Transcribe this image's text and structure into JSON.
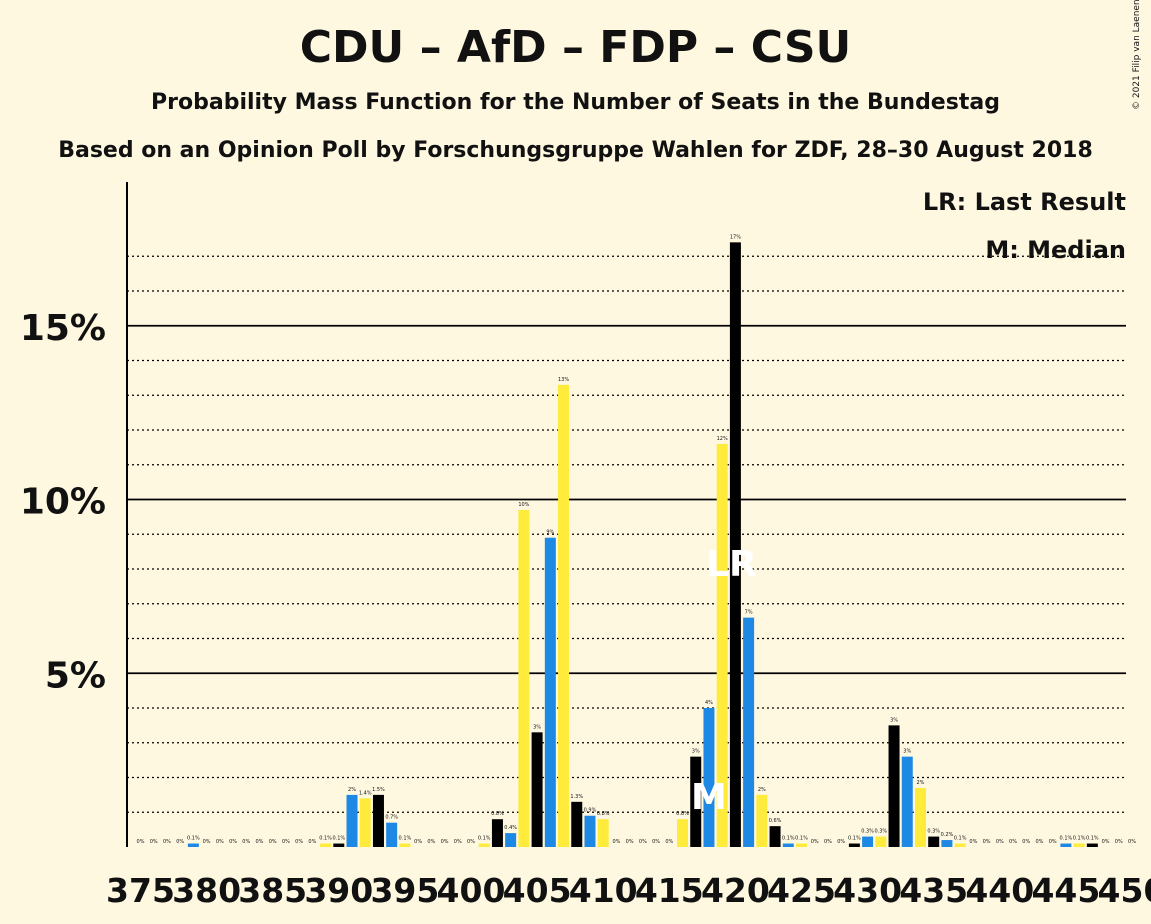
{
  "header": {
    "title": "CDU – AfD – FDP – CSU",
    "subtitle": "Probability Mass Function for the Number of Seats in the Bundestag",
    "source": "Based on an Opinion Poll by Forschungsgruppe Wahlen for ZDF, 28–30 August 2018",
    "copyright": "© 2021 Filip van Laenen"
  },
  "legend": {
    "last_result": "LR: Last Result",
    "median": "M: Median",
    "placement": "top-right"
  },
  "markers": {
    "last_result_label": "LR",
    "last_result_seat": 420,
    "median_label": "M",
    "median_seat": 418
  },
  "colors": {
    "background": "#FFF8E1",
    "cycle": [
      "#000000",
      "#1E88E5",
      "#FFEB3B"
    ]
  },
  "chart_data": {
    "type": "bar",
    "xlabel": "",
    "ylabel": "",
    "x_tick_labels": [
      "375",
      "380",
      "385",
      "390",
      "395",
      "400",
      "405",
      "410",
      "415",
      "420",
      "425",
      "430",
      "435",
      "440",
      "445",
      "450"
    ],
    "y_tick_labels": [
      "5%",
      "10%",
      "15%"
    ],
    "y_ticks": [
      5,
      10,
      15
    ],
    "ylim": [
      0,
      19
    ],
    "xlim": [
      375,
      450
    ],
    "grid": true,
    "seats": [
      375,
      376,
      377,
      378,
      379,
      380,
      381,
      382,
      383,
      384,
      385,
      386,
      387,
      388,
      389,
      390,
      391,
      392,
      393,
      394,
      395,
      396,
      397,
      398,
      399,
      400,
      401,
      402,
      403,
      404,
      405,
      406,
      407,
      408,
      409,
      410,
      411,
      412,
      413,
      414,
      415,
      416,
      417,
      418,
      419,
      420,
      421,
      422,
      423,
      424,
      425,
      426,
      427,
      428,
      429,
      430,
      431,
      432,
      433,
      434,
      435,
      436,
      437,
      438,
      439,
      440,
      441,
      442,
      443,
      444,
      445,
      446,
      447,
      448,
      449,
      450
    ],
    "values": [
      0,
      0,
      0,
      0,
      0.1,
      0,
      0,
      0,
      0,
      0,
      0,
      0,
      0,
      0,
      0.1,
      0.1,
      1.5,
      1.4,
      1.5,
      0.7,
      0.1,
      0,
      0,
      0,
      0,
      0,
      0.1,
      0.8,
      0.4,
      9.7,
      3.3,
      8.9,
      13.3,
      1.3,
      0.9,
      0.8,
      0,
      0,
      0,
      0,
      0,
      0.8,
      2.6,
      4.0,
      11.6,
      17.4,
      6.6,
      1.5,
      0.6,
      0.1,
      0.1,
      0,
      0,
      0,
      0.1,
      0.3,
      0.3,
      3.5,
      2.6,
      1.7,
      0.3,
      0.2,
      0.1,
      0,
      0,
      0,
      0,
      0,
      0,
      0,
      0.1,
      0.1,
      0.1,
      0,
      0,
      0
    ],
    "value_labels": [
      "0%",
      "0%",
      "0%",
      "0%",
      "0.1%",
      "0%",
      "0%",
      "0%",
      "0%",
      "0%",
      "0%",
      "0%",
      "0%",
      "0%",
      "0.1%",
      "0.1%",
      "2%",
      "1.4%",
      "1.5%",
      "0.7%",
      "0.1%",
      "0%",
      "0%",
      "0%",
      "0%",
      "0%",
      "0.1%",
      "0.8%",
      "0.4%",
      "10%",
      "3%",
      "9%",
      "13%",
      "1.3%",
      "0.9%",
      "0.8%",
      "0%",
      "0%",
      "0%",
      "0%",
      "0%",
      "0.8%",
      "3%",
      "4%",
      "12%",
      "17%",
      "7%",
      "2%",
      "0.6%",
      "0.1%",
      "0.1%",
      "0%",
      "0%",
      "0%",
      "0.1%",
      "0.3%",
      "0.3%",
      "3%",
      "3%",
      "2%",
      "0.3%",
      "0.2%",
      "0.1%",
      "0%",
      "0%",
      "0%",
      "0%",
      "0%",
      "0%",
      "0%",
      "0.1%",
      "0.1%",
      "0.1%",
      "0%",
      "0%",
      "0%"
    ]
  }
}
